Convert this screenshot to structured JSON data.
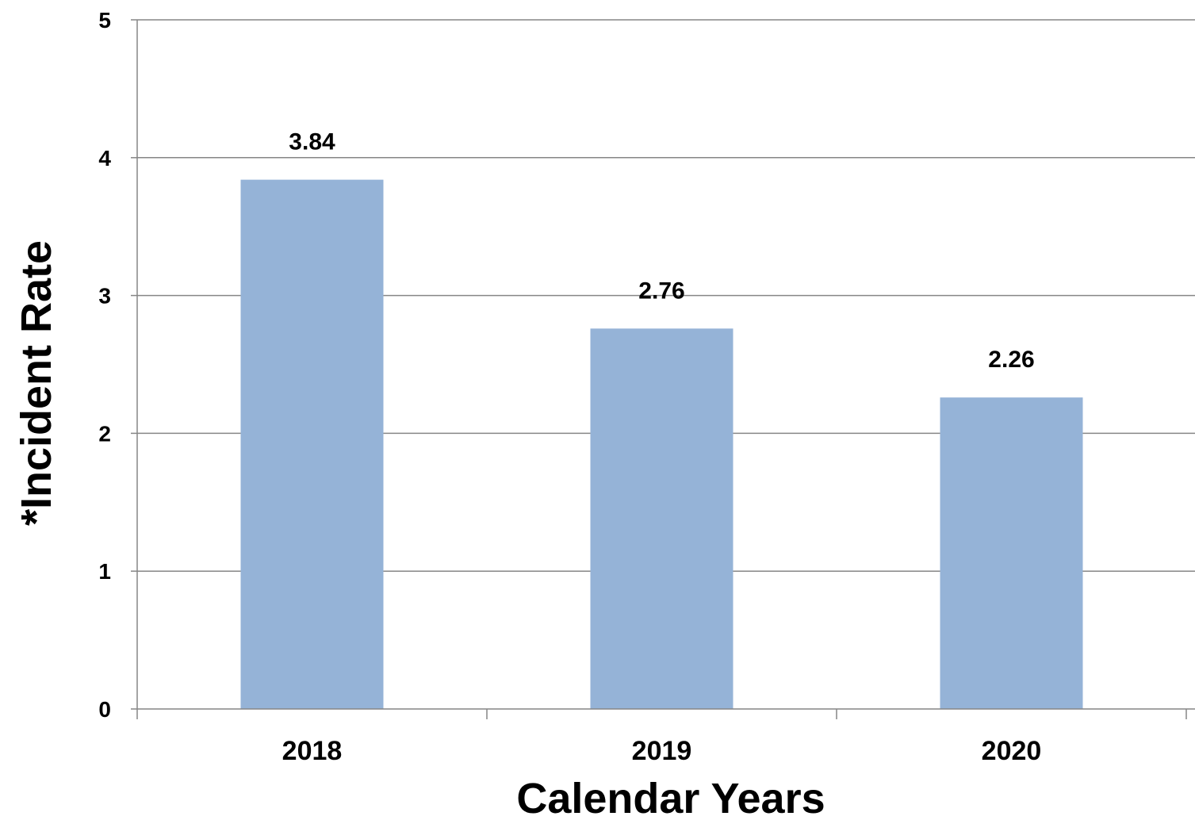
{
  "chart_data": {
    "type": "bar",
    "title": "",
    "xlabel": "Calendar Years",
    "ylabel": "*Incident Rate",
    "categories": [
      "2018",
      "2019",
      "2020"
    ],
    "values": [
      3.84,
      2.76,
      2.26
    ],
    "value_labels": [
      "3.84",
      "2.76",
      "2.26"
    ],
    "ylim": [
      0,
      5
    ],
    "yticks": [
      0,
      1,
      2,
      3,
      4,
      5
    ],
    "grid": true,
    "legend": "none",
    "colors": {
      "bar": "#95B3D7",
      "grid": "#868686",
      "axis": "#868686"
    }
  }
}
